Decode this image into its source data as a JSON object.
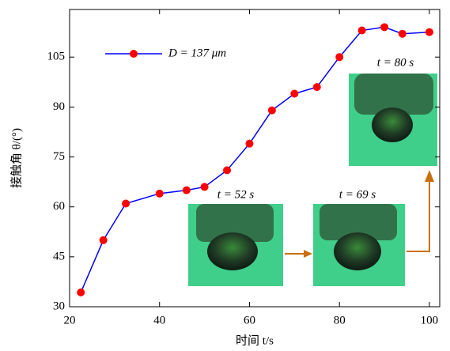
{
  "chart_data": {
    "type": "line",
    "x_label": "时间 t/s",
    "y_label": "接触角 θ/(°)",
    "x": [
      22.5,
      27.5,
      32.5,
      40,
      46,
      50,
      55,
      60,
      65,
      70,
      75,
      80,
      85,
      90,
      94,
      100
    ],
    "series": [
      {
        "name": "D = 137 μm",
        "color": "#0000ff",
        "marker_color": "#ff0000",
        "values": [
          34.3,
          50,
          61,
          64,
          65,
          66,
          71,
          79,
          89,
          94,
          96,
          105,
          113,
          114,
          112,
          112.5
        ]
      }
    ],
    "xlim": [
      20,
      102.3
    ],
    "ylim": [
      30,
      119.3
    ],
    "xticks": [
      20,
      40,
      60,
      80,
      100
    ],
    "yticks": [
      30,
      45,
      60,
      75,
      90,
      105
    ],
    "legend": "upper left",
    "annotations": [
      "t = 52 s",
      "t = 69 s",
      "t = 80 s"
    ]
  }
}
